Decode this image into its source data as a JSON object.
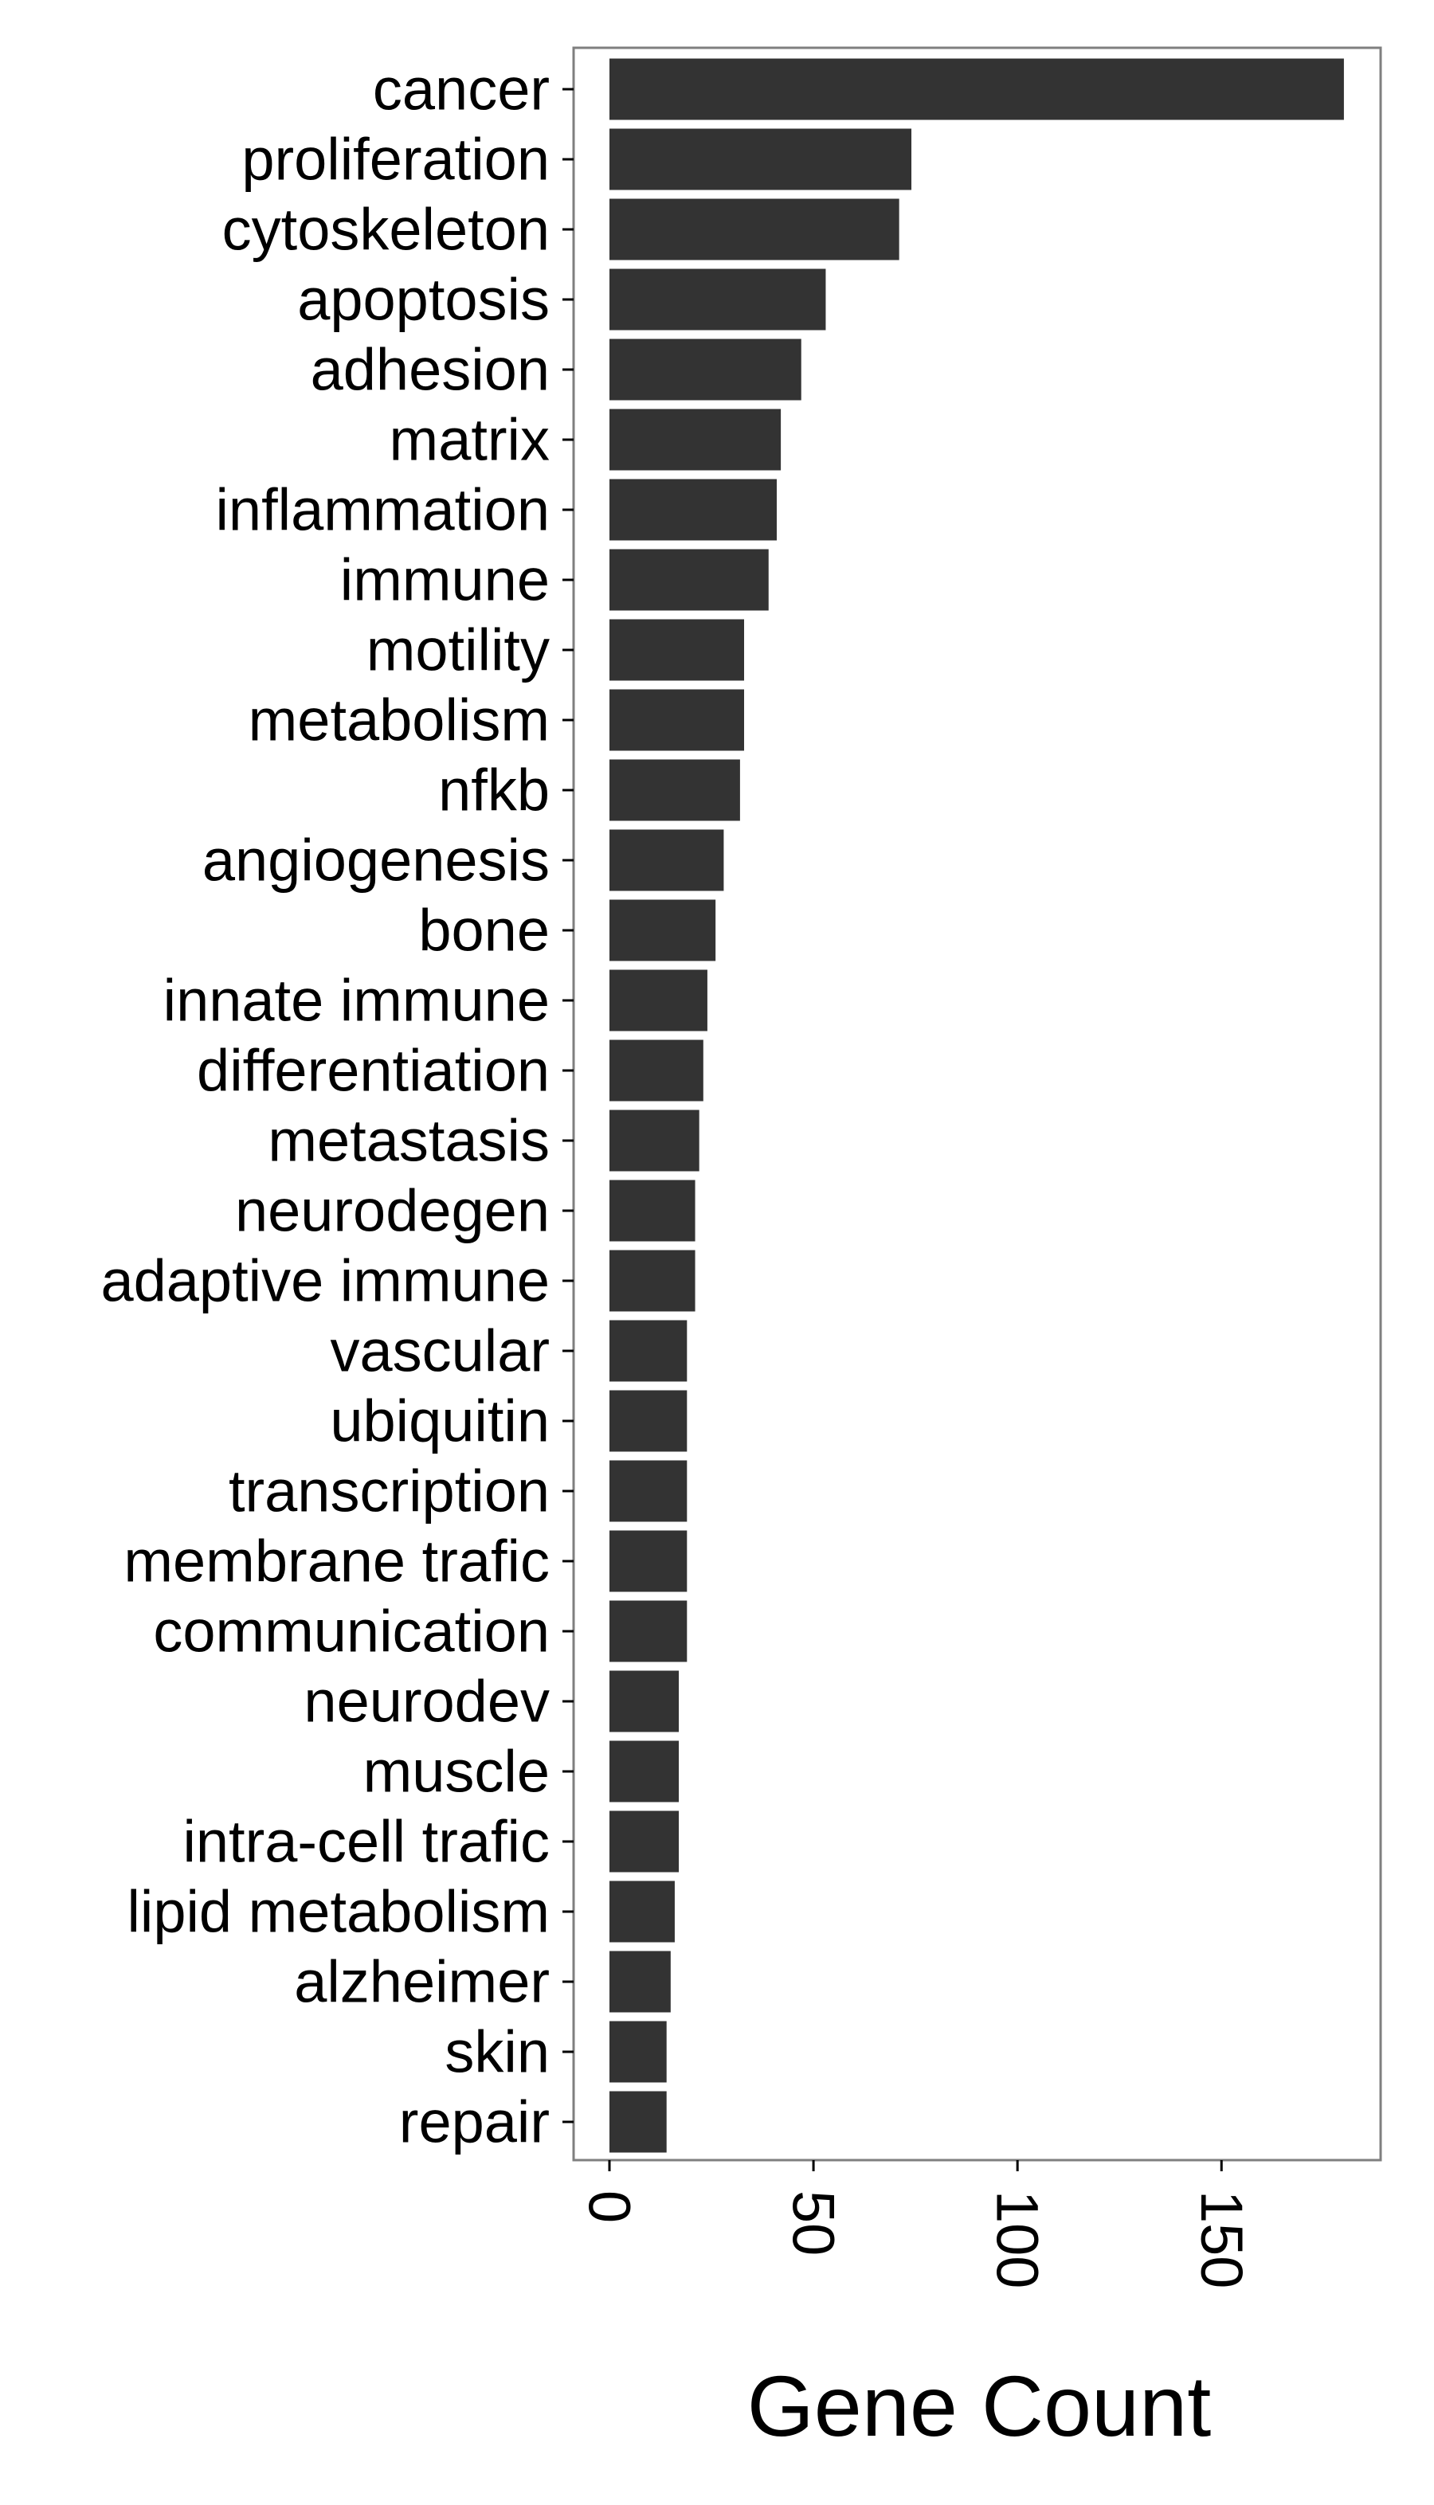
{
  "chart_data": {
    "type": "bar",
    "orientation": "horizontal",
    "title": "",
    "xlabel": "Gene Count",
    "ylabel": "",
    "xlim": [
      0,
      189
    ],
    "xticks": [
      0,
      50,
      100,
      150
    ],
    "xtick_labels": [
      "0",
      "50",
      "100",
      "150"
    ],
    "xtick_label_rotation": "90 degrees clockwise",
    "grid": false,
    "legend": "none",
    "bar_color": "#333333",
    "panel_border_color": "#7f7f7f",
    "categories": [
      "cancer",
      "proliferation",
      "cytoskeleton",
      "apoptosis",
      "adhesion",
      "matrix",
      "inflammation",
      "immune",
      "motility",
      "metabolism",
      "nfkb",
      "angiogenesis",
      "bone",
      "innate immune",
      "differentiation",
      "metastasis",
      "neurodegen",
      "adaptive immune",
      "vascular",
      "ubiquitin",
      "transcription",
      "membrane trafic",
      "communication",
      "neurodev",
      "muscle",
      "intra-cell trafic",
      "lipid metabolism",
      "alzheimer",
      "skin",
      "repair"
    ],
    "values": [
      180,
      74,
      71,
      53,
      47,
      42,
      41,
      39,
      33,
      33,
      32,
      28,
      26,
      24,
      23,
      22,
      21,
      21,
      19,
      19,
      19,
      19,
      19,
      17,
      17,
      17,
      16,
      15,
      14,
      14
    ]
  }
}
